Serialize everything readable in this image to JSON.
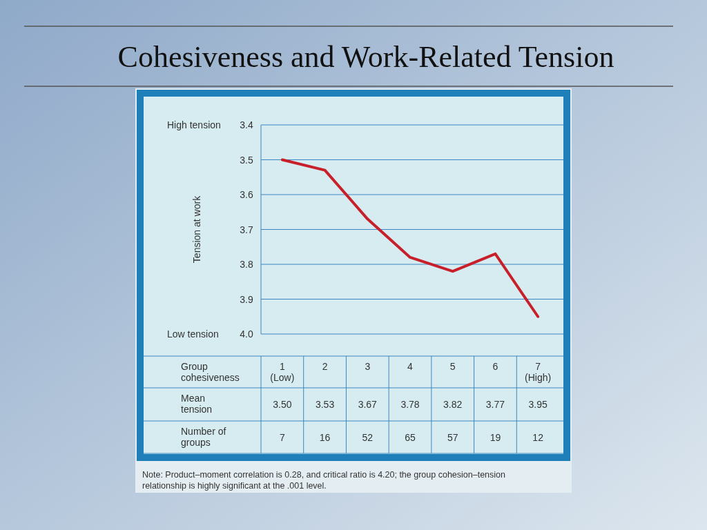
{
  "chart_data": {
    "type": "line",
    "title": "Cohesiveness and Work-Related Tension",
    "xlabel": "Group cohesiveness",
    "ylabel": "Tension at work",
    "categories": [
      "1 (Low)",
      "2",
      "3",
      "4",
      "5",
      "6",
      "7 (High)"
    ],
    "series": [
      {
        "name": "Mean tension",
        "color": "#c8202a",
        "values": [
          3.5,
          3.53,
          3.67,
          3.78,
          3.82,
          3.77,
          3.95
        ],
        "value_labels": [
          "3.50",
          "3.53",
          "3.67",
          "3.78",
          "3.82",
          "3.77",
          "3.95"
        ]
      }
    ],
    "ylim": [
      4.0,
      3.4
    ],
    "yticks": [
      {
        "value": 4.0,
        "label": "4.0"
      },
      3.9,
      3.8,
      3.7,
      3.6,
      3.5,
      3.4
    ],
    "grid": "y",
    "marker": "none",
    "line_style": "solid",
    "legend": false,
    "annotations": [
      "High tension",
      "Low tension",
      "Number of groups",
      "7",
      "16",
      "52",
      "65",
      "57",
      "19",
      "12",
      "Note: Product–moment correlation is 0.28, and critical ratio is 4.20; the group cohesion–tension relationship is highly significant at the .001 level."
    ]
  }
}
